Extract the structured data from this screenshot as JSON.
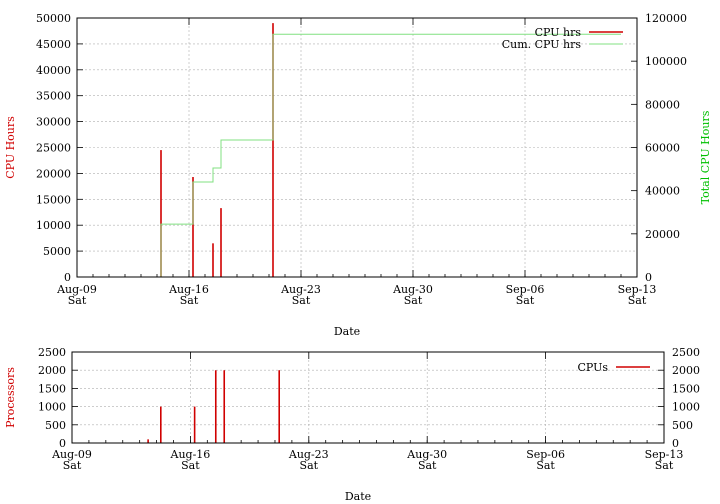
{
  "chart_data": [
    {
      "type": "line",
      "xlabel": "Date",
      "ylabel": "CPU Hours",
      "y2label": "Total CPU Hours",
      "ylim": [
        0,
        50000
      ],
      "y2lim": [
        0,
        120000
      ],
      "yticks": [
        0,
        5000,
        10000,
        15000,
        20000,
        25000,
        30000,
        35000,
        40000,
        45000,
        50000
      ],
      "y2ticks": [
        0,
        20000,
        40000,
        60000,
        80000,
        100000,
        120000
      ],
      "xlim": [
        "2014-08-09",
        "2014-09-13"
      ],
      "xticks": [
        {
          "date": "Aug-09",
          "day": "Sat"
        },
        {
          "date": "Aug-16",
          "day": "Sat"
        },
        {
          "date": "Aug-23",
          "day": "Sat"
        },
        {
          "date": "Aug-30",
          "day": "Sat"
        },
        {
          "date": "Sep-06",
          "day": "Sat"
        },
        {
          "date": "Sep-13",
          "day": "Sat"
        }
      ],
      "grid": true,
      "legend_position": "top-right",
      "series": [
        {
          "name": "CPU hrs",
          "axis": "left",
          "style": "impulses",
          "color": "#d00000",
          "points": [
            {
              "x": "2014-08-14 06:00",
              "y": 24500
            },
            {
              "x": "2014-08-16 06:00",
              "y": 19300
            },
            {
              "x": "2014-08-17 12:00",
              "y": 6500
            },
            {
              "x": "2014-08-18 00:00",
              "y": 13300
            },
            {
              "x": "2014-08-21 06:00",
              "y": 49000
            }
          ]
        },
        {
          "name": "Cum. CPU hrs",
          "axis": "right",
          "style": "steps",
          "color": "#80e080",
          "points": [
            {
              "x": "2014-08-14 06:00",
              "y": 24500
            },
            {
              "x": "2014-08-16 06:00",
              "y": 44000
            },
            {
              "x": "2014-08-17 12:00",
              "y": 50500
            },
            {
              "x": "2014-08-18 00:00",
              "y": 63500
            },
            {
              "x": "2014-08-21 06:00",
              "y": 112500
            },
            {
              "x": "2014-09-12 00:00",
              "y": 112500
            }
          ]
        }
      ]
    },
    {
      "type": "bar",
      "xlabel": "Date",
      "ylabel": "Processors",
      "ylim": [
        0,
        2500
      ],
      "y2lim": [
        0,
        2500
      ],
      "yticks": [
        0,
        500,
        1000,
        1500,
        2000,
        2500
      ],
      "y2ticks": [
        0,
        500,
        1000,
        1500,
        2000,
        2500
      ],
      "xlim": [
        "2014-08-09",
        "2014-09-13"
      ],
      "xticks": [
        {
          "date": "Aug-09",
          "day": "Sat"
        },
        {
          "date": "Aug-16",
          "day": "Sat"
        },
        {
          "date": "Aug-23",
          "day": "Sat"
        },
        {
          "date": "Aug-30",
          "day": "Sat"
        },
        {
          "date": "Sep-06",
          "day": "Sat"
        },
        {
          "date": "Sep-13",
          "day": "Sat"
        }
      ],
      "grid": true,
      "legend_position": "top-right",
      "series": [
        {
          "name": "CPUs",
          "style": "impulses",
          "color": "#d00000",
          "points": [
            {
              "x": "2014-08-13 12:00",
              "y": 100
            },
            {
              "x": "2014-08-14 06:00",
              "y": 1000
            },
            {
              "x": "2014-08-16 06:00",
              "y": 1000
            },
            {
              "x": "2014-08-17 12:00",
              "y": 2000
            },
            {
              "x": "2014-08-18 00:00",
              "y": 2000
            },
            {
              "x": "2014-08-21 06:00",
              "y": 2000
            }
          ]
        }
      ]
    }
  ]
}
